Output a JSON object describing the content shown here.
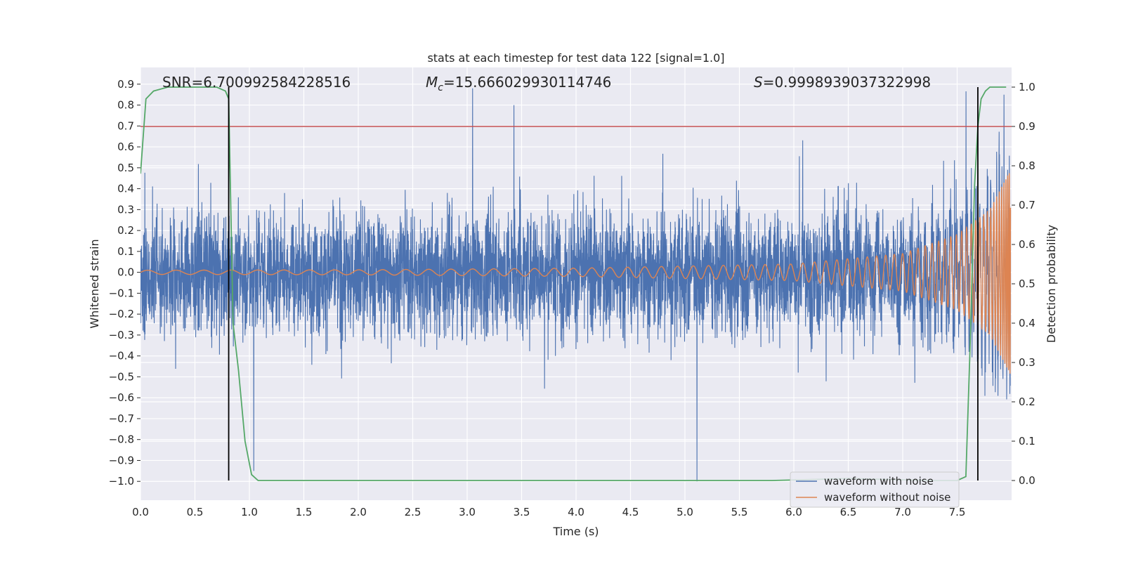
{
  "chart_data": {
    "type": "line",
    "title": "stats at each timestep for test data 122 [signal=1.0]",
    "xlabel": "Time (s)",
    "ylabel": "Whitened strain",
    "y2label": "Detection probability",
    "xlim": [
      0.0,
      8.0
    ],
    "ylim": [
      -1.09,
      0.98
    ],
    "y2lim": [
      -0.05,
      1.05
    ],
    "xticks": [
      0.0,
      0.5,
      1.0,
      1.5,
      2.0,
      2.5,
      3.0,
      3.5,
      4.0,
      4.5,
      5.0,
      5.5,
      6.0,
      6.5,
      7.0,
      7.5
    ],
    "xtick_labels": [
      "0.0",
      "0.5",
      "1.0",
      "1.5",
      "2.0",
      "2.5",
      "3.0",
      "3.5",
      "4.0",
      "4.5",
      "5.0",
      "5.5",
      "6.0",
      "6.5",
      "7.0",
      "7.5"
    ],
    "yticks": [
      -1.0,
      -0.9,
      -0.8,
      -0.7,
      -0.6,
      -0.5,
      -0.4,
      -0.3,
      -0.2,
      -0.1,
      0.0,
      0.1,
      0.2,
      0.3,
      0.4,
      0.5,
      0.6,
      0.7,
      0.8,
      0.9
    ],
    "ytick_labels": [
      "−1.0",
      "−0.9",
      "−0.8",
      "−0.7",
      "−0.6",
      "−0.5",
      "−0.4",
      "−0.3",
      "−0.2",
      "−0.1",
      "0.0",
      "0.1",
      "0.2",
      "0.3",
      "0.4",
      "0.5",
      "0.6",
      "0.7",
      "0.8",
      "0.9"
    ],
    "y2ticks": [
      0.0,
      0.1,
      0.2,
      0.3,
      0.4,
      0.5,
      0.6,
      0.7,
      0.8,
      0.9,
      1.0
    ],
    "y2tick_labels": [
      "0.0",
      "0.1",
      "0.2",
      "0.3",
      "0.4",
      "0.5",
      "0.6",
      "0.7",
      "0.8",
      "0.9",
      "1.0"
    ],
    "annotations": {
      "snr": "SNR=6.700992584228516",
      "mc_symbol": "M",
      "mc_sub": "c",
      "mc_value": "=15.666029930114746",
      "s_symbol": "S",
      "s_value": "=0.9998939037322998"
    },
    "threshold_line": {
      "y2": 0.9,
      "color": "#c44e52"
    },
    "vertical_markers": [
      0.81,
      7.69
    ],
    "series": [
      {
        "name": "waveform with noise",
        "color": "#4c72b0",
        "description": "whitened noisy strain, ~Gaussian noise spanning roughly -0.7 to 0.7 with spikes to 0.88 (t~3.05) and -1.0 (t~5.1)",
        "peaks": [
          [
            3.05,
            0.88
          ],
          [
            3.43,
            0.8
          ],
          [
            5.11,
            -1.0
          ],
          [
            1.04,
            -0.95
          ],
          [
            7.93,
            0.85
          ]
        ]
      },
      {
        "name": "waveform without noise",
        "color": "#dd8452",
        "description": "chirp signal with growing frequency and amplitude",
        "amplitude_points": [
          [
            0.0,
            0.01
          ],
          [
            2.0,
            0.012
          ],
          [
            4.0,
            0.02
          ],
          [
            6.0,
            0.04
          ],
          [
            7.0,
            0.09
          ],
          [
            7.5,
            0.18
          ],
          [
            7.8,
            0.3
          ],
          [
            8.0,
            0.5
          ]
        ]
      },
      {
        "name": "Detection probability",
        "axis": "right",
        "color": "#55a868",
        "x": [
          0.0,
          0.05,
          0.12,
          0.25,
          0.5,
          0.7,
          0.78,
          0.81,
          0.85,
          0.9,
          0.96,
          1.02,
          1.08,
          2.0,
          4.0,
          5.0,
          5.8,
          6.5,
          7.3,
          7.5,
          7.58,
          7.62,
          7.66,
          7.69,
          7.72,
          7.76,
          7.8,
          7.85,
          7.9,
          7.95
        ],
        "values": [
          0.78,
          0.97,
          0.99,
          1.0,
          1.0,
          1.0,
          0.99,
          0.97,
          0.4,
          0.28,
          0.1,
          0.015,
          0.0,
          0.0,
          0.0,
          0.0,
          0.0,
          0.005,
          0.0,
          0.0,
          0.01,
          0.35,
          0.75,
          0.9,
          0.97,
          0.99,
          1.0,
          1.0,
          1.0,
          1.0
        ]
      }
    ],
    "legend": {
      "placement": "lower-right",
      "entries": [
        "waveform with noise",
        "waveform without noise"
      ]
    }
  }
}
